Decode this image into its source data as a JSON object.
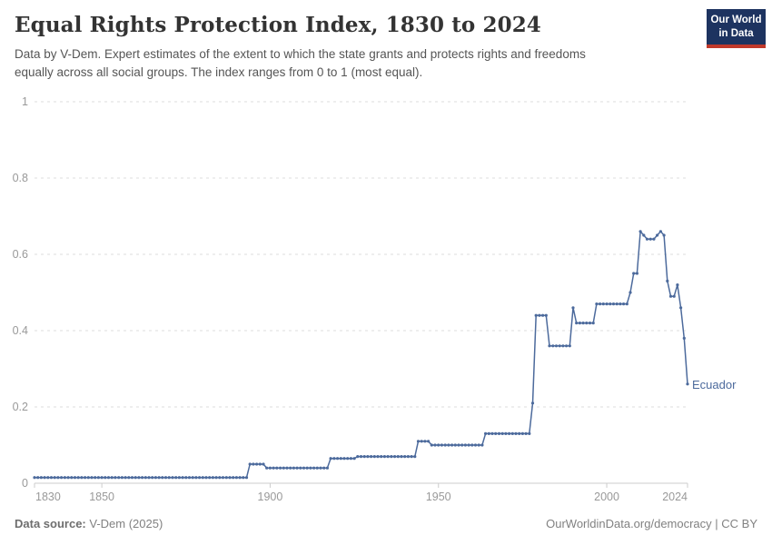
{
  "header": {
    "title": "Equal Rights Protection Index, 1830 to 2024",
    "subtitle_line1": "Data by V-Dem. Expert estimates of the extent to which the state grants and protects rights and freedoms",
    "subtitle_line2": "equally across all social groups. The index ranges from 0 to 1 (most equal).",
    "logo": {
      "line1": "Our World",
      "line2": "in Data",
      "bg_color": "#1d3360",
      "accent_color": "#c0392b"
    }
  },
  "footer": {
    "source_label": "Data source:",
    "source_value": " V-Dem (2025)",
    "attribution": "OurWorldinData.org/democracy | CC BY"
  },
  "chart_data": {
    "type": "line",
    "title": "Equal Rights Protection Index, 1830 to 2024",
    "entity_label": "Ecuador",
    "line_color": "#4c6a9c",
    "grid": "horizontal-dashed",
    "legend_position": "end-of-line-label",
    "xlim": [
      1830,
      2024
    ],
    "ylim": [
      0,
      1
    ],
    "x_ticks": [
      1830,
      1850,
      1900,
      1950,
      2000,
      2024
    ],
    "y_ticks": [
      0,
      0.2,
      0.4,
      0.6,
      0.8,
      1
    ],
    "series": [
      {
        "name": "Ecuador",
        "value_runs_year_start_end_value": [
          [
            1830,
            1893,
            0.015
          ],
          [
            1894,
            1898,
            0.05
          ],
          [
            1899,
            1917,
            0.04
          ],
          [
            1918,
            1925,
            0.065
          ],
          [
            1926,
            1943,
            0.07
          ],
          [
            1944,
            1947,
            0.11
          ],
          [
            1948,
            1963,
            0.1
          ],
          [
            1964,
            1977,
            0.13
          ],
          [
            1978,
            1978,
            0.21
          ],
          [
            1979,
            1982,
            0.44
          ],
          [
            1983,
            1989,
            0.36
          ],
          [
            1990,
            1990,
            0.46
          ],
          [
            1991,
            1996,
            0.42
          ],
          [
            1997,
            2006,
            0.47
          ],
          [
            2007,
            2007,
            0.5
          ],
          [
            2008,
            2009,
            0.55
          ],
          [
            2010,
            2010,
            0.66
          ],
          [
            2011,
            2011,
            0.65
          ],
          [
            2012,
            2014,
            0.64
          ],
          [
            2015,
            2015,
            0.65
          ],
          [
            2016,
            2016,
            0.66
          ],
          [
            2017,
            2017,
            0.65
          ],
          [
            2018,
            2018,
            0.53
          ],
          [
            2019,
            2020,
            0.49
          ],
          [
            2021,
            2021,
            0.52
          ],
          [
            2022,
            2022,
            0.46
          ],
          [
            2023,
            2023,
            0.38
          ],
          [
            2024,
            2024,
            0.26
          ]
        ]
      }
    ]
  }
}
